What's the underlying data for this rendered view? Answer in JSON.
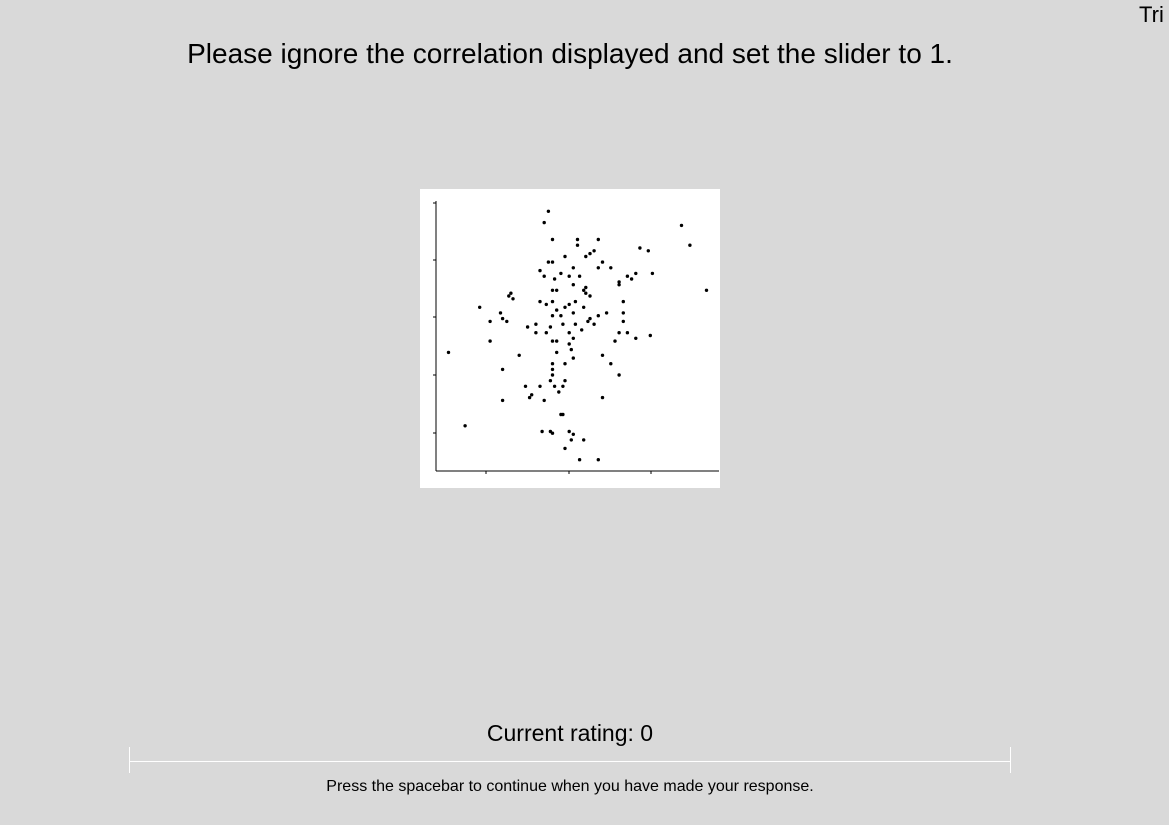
{
  "header": {
    "trial_label": "Tri"
  },
  "instruction": "Please ignore the correlation displayed and set the slider to 1.",
  "rating": {
    "label": "Current rating: 0",
    "value": 0
  },
  "footer": {
    "prompt": "Press the spacebar to continue when you have made your response."
  },
  "colors": {
    "background": "#d9d9d9",
    "plot_background": "#ffffff",
    "point": "#000000",
    "slider": "#ffffff"
  },
  "chart_data": {
    "type": "scatter",
    "title": "",
    "xlabel": "",
    "ylabel": "",
    "x_tick_labels": [],
    "y_tick_labels": [],
    "xlim": [
      0,
      6.8
    ],
    "ylim": [
      0,
      4.8
    ],
    "grid": false,
    "points": [
      [
        2.7,
        4.6
      ],
      [
        2.6,
        4.4
      ],
      [
        2.8,
        4.1
      ],
      [
        3.4,
        4.1
      ],
      [
        3.9,
        4.1
      ],
      [
        3.4,
        4.0
      ],
      [
        3.8,
        3.9
      ],
      [
        3.7,
        3.85
      ],
      [
        3.6,
        3.8
      ],
      [
        4.9,
        3.95
      ],
      [
        5.1,
        3.9
      ],
      [
        5.9,
        4.35
      ],
      [
        6.1,
        4.0
      ],
      [
        3.1,
        3.8
      ],
      [
        2.7,
        3.7
      ],
      [
        2.8,
        3.7
      ],
      [
        3.3,
        3.6
      ],
      [
        4.0,
        3.7
      ],
      [
        3.9,
        3.6
      ],
      [
        4.2,
        3.6
      ],
      [
        4.8,
        3.5
      ],
      [
        5.2,
        3.5
      ],
      [
        2.5,
        3.55
      ],
      [
        2.6,
        3.45
      ],
      [
        2.85,
        3.4
      ],
      [
        3.0,
        3.5
      ],
      [
        3.2,
        3.45
      ],
      [
        3.45,
        3.45
      ],
      [
        3.3,
        3.3
      ],
      [
        4.4,
        3.35
      ],
      [
        4.4,
        3.3
      ],
      [
        4.6,
        3.45
      ],
      [
        4.7,
        3.4
      ],
      [
        2.8,
        3.2
      ],
      [
        2.9,
        3.2
      ],
      [
        3.55,
        3.2
      ],
      [
        3.6,
        3.25
      ],
      [
        6.5,
        3.2
      ],
      [
        1.8,
        3.15
      ],
      [
        1.85,
        3.05
      ],
      [
        1.75,
        3.1
      ],
      [
        2.5,
        3.0
      ],
      [
        2.65,
        2.95
      ],
      [
        2.8,
        3.0
      ],
      [
        3.6,
        3.15
      ],
      [
        3.7,
        3.1
      ],
      [
        3.2,
        2.95
      ],
      [
        3.35,
        3.0
      ],
      [
        4.5,
        3.0
      ],
      [
        1.05,
        2.9
      ],
      [
        2.9,
        2.85
      ],
      [
        3.1,
        2.9
      ],
      [
        3.55,
        2.9
      ],
      [
        1.55,
        2.8
      ],
      [
        1.6,
        2.7
      ],
      [
        2.8,
        2.75
      ],
      [
        3.0,
        2.75
      ],
      [
        3.3,
        2.8
      ],
      [
        3.7,
        2.7
      ],
      [
        3.9,
        2.75
      ],
      [
        4.1,
        2.8
      ],
      [
        4.5,
        2.8
      ],
      [
        1.3,
        2.65
      ],
      [
        1.7,
        2.65
      ],
      [
        2.4,
        2.6
      ],
      [
        2.75,
        2.55
      ],
      [
        3.05,
        2.6
      ],
      [
        3.35,
        2.6
      ],
      [
        3.8,
        2.6
      ],
      [
        3.65,
        2.65
      ],
      [
        4.5,
        2.65
      ],
      [
        2.2,
        2.55
      ],
      [
        2.4,
        2.45
      ],
      [
        2.65,
        2.45
      ],
      [
        3.2,
        2.45
      ],
      [
        3.5,
        2.5
      ],
      [
        4.4,
        2.45
      ],
      [
        4.6,
        2.45
      ],
      [
        4.3,
        2.3
      ],
      [
        4.8,
        2.35
      ],
      [
        5.15,
        2.4
      ],
      [
        1.3,
        2.3
      ],
      [
        2.8,
        2.3
      ],
      [
        2.9,
        2.3
      ],
      [
        3.2,
        2.25
      ],
      [
        3.3,
        2.35
      ],
      [
        3.25,
        2.15
      ],
      [
        2.9,
        2.1
      ],
      [
        4.0,
        2.05
      ],
      [
        0.3,
        2.1
      ],
      [
        2.0,
        2.05
      ],
      [
        3.3,
        2.0
      ],
      [
        2.8,
        1.9
      ],
      [
        3.1,
        1.9
      ],
      [
        4.2,
        1.9
      ],
      [
        1.6,
        1.8
      ],
      [
        2.8,
        1.8
      ],
      [
        4.4,
        1.7
      ],
      [
        2.8,
        1.7
      ],
      [
        2.75,
        1.6
      ],
      [
        3.1,
        1.6
      ],
      [
        2.15,
        1.5
      ],
      [
        2.5,
        1.5
      ],
      [
        2.85,
        1.5
      ],
      [
        3.05,
        1.5
      ],
      [
        2.95,
        1.4
      ],
      [
        2.3,
        1.35
      ],
      [
        4.0,
        1.3
      ],
      [
        2.6,
        1.25
      ],
      [
        1.6,
        1.25
      ],
      [
        2.25,
        1.3
      ],
      [
        3.0,
        1.0
      ],
      [
        3.05,
        1.0
      ],
      [
        0.7,
        0.8
      ],
      [
        2.55,
        0.7
      ],
      [
        2.75,
        0.7
      ],
      [
        2.8,
        0.67
      ],
      [
        3.2,
        0.7
      ],
      [
        3.3,
        0.65
      ],
      [
        3.55,
        0.55
      ],
      [
        3.25,
        0.55
      ],
      [
        3.1,
        0.4
      ],
      [
        3.45,
        0.2
      ],
      [
        3.9,
        0.2
      ]
    ]
  }
}
